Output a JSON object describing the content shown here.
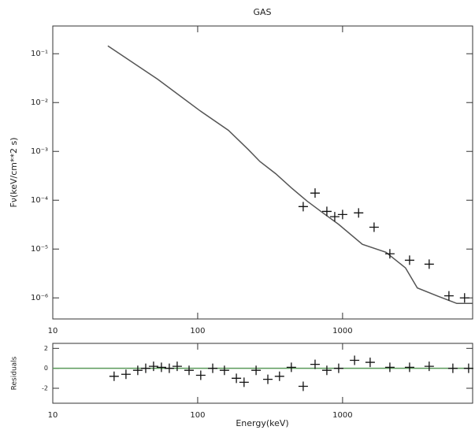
{
  "chart_data": [
    {
      "type": "line",
      "title": "GAS",
      "y_label": "Fν(keV/cm**2 s)",
      "xlog": true,
      "ylog": true,
      "xlim": [
        10,
        7900
      ],
      "ylim": [
        3.7e-07,
        0.37
      ],
      "xticks": [
        10,
        100,
        1000
      ],
      "yticks": [
        {
          "value": 0.1,
          "label": "10⁻¹"
        },
        {
          "value": 0.01,
          "label": "10⁻²"
        },
        {
          "value": 0.001,
          "label": "10⁻³"
        },
        {
          "value": 0.0001,
          "label": "10⁻⁴"
        },
        {
          "value": 1e-05,
          "label": "10⁻⁵"
        },
        {
          "value": 1e-06,
          "label": "10⁻⁶"
        }
      ],
      "series": [
        {
          "style": "line",
          "color": "#555555",
          "x": [
            24,
            53,
            103,
            163,
            223,
            269,
            345,
            443,
            569,
            731,
            940,
            1370,
            1990,
            2720,
            3280,
            4490,
            6140,
            7890
          ],
          "values": [
            0.145,
            0.03,
            0.0069,
            0.0027,
            0.0011,
            0.00062,
            0.00035,
            0.00018,
            9.6e-05,
            5.5e-05,
            3.2e-05,
            1.25e-05,
            8.6e-06,
            4.1e-06,
            1.6e-06,
            1.1e-06,
            7.7e-07,
            7.7e-07
          ]
        },
        {
          "style": "cross",
          "color": "#111111",
          "x": [
            535,
            646,
            779,
            883,
            1000,
            1290,
            1650,
            2120,
            2900,
            3960,
            5420,
            6950
          ],
          "values": [
            7.4e-05,
            0.00014,
            5.9e-05,
            4.6e-05,
            5.1e-05,
            5.5e-05,
            2.8e-05,
            8e-06,
            5.9e-06,
            4.9e-06,
            1.1e-06,
            1e-06
          ]
        }
      ]
    },
    {
      "type": "scatter",
      "x_label": "Energy(keV)",
      "y_label": "Residuals",
      "xlog": true,
      "xlim": [
        10,
        7900
      ],
      "ylim": [
        -3.5,
        2.5
      ],
      "xticks": [
        10,
        100,
        1000
      ],
      "yticks": [
        -2,
        0,
        2
      ],
      "hline": 0,
      "hline_color": "#5a9a5a",
      "series": [
        {
          "style": "cross",
          "color": "#111111",
          "x": [
            26.5,
            32,
            38.6,
            43.8,
            49.6,
            56.2,
            63.7,
            72.2,
            87.2,
            105,
            127,
            153,
            185,
            209,
            253,
            305,
            367,
            443,
            535,
            646,
            779,
            940,
            1210,
            1550,
            2120,
            2900,
            3960,
            5770,
            7410
          ],
          "values": [
            -0.8,
            -0.6,
            -0.2,
            0,
            0.2,
            0.1,
            0,
            0.2,
            -0.2,
            -0.7,
            0,
            -0.2,
            -1.0,
            -1.4,
            -0.2,
            -1.1,
            -0.8,
            0.1,
            -1.8,
            0.4,
            -0.2,
            0,
            0.8,
            0.6,
            0.1,
            0.1,
            0.2,
            0,
            0
          ]
        }
      ]
    }
  ]
}
